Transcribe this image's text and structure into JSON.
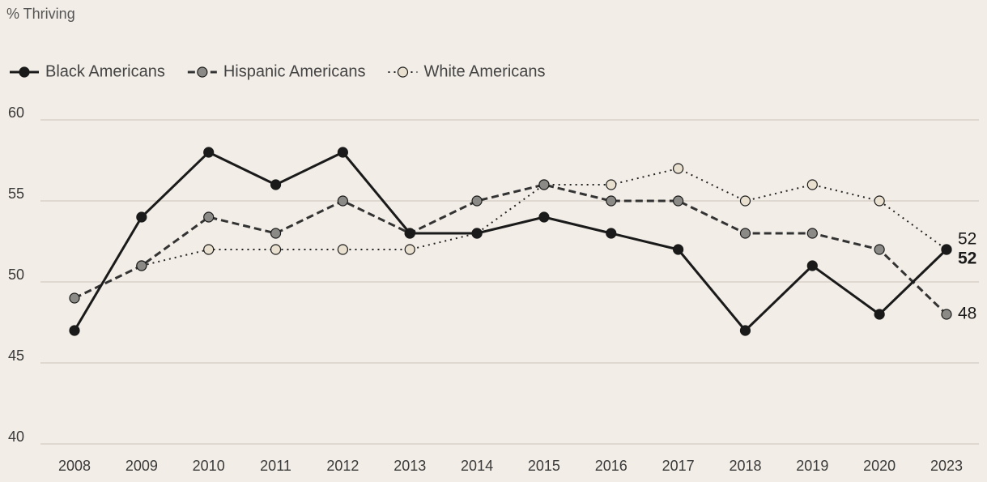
{
  "chart_data": {
    "type": "line",
    "ylabel": "% Thriving",
    "categories": [
      "2008",
      "2009",
      "2010",
      "2011",
      "2012",
      "2013",
      "2014",
      "2015",
      "2016",
      "2017",
      "2018",
      "2019",
      "2020",
      "2023"
    ],
    "series": [
      {
        "name": "Black Americans",
        "color": "#1a1a1a",
        "marker_color": "#1a1a1a",
        "dash": "solid",
        "values": [
          47,
          54,
          58,
          56,
          58,
          53,
          53,
          54,
          53,
          52,
          47,
          51,
          48,
          52
        ]
      },
      {
        "name": "Hispanic Americans",
        "color": "#333333",
        "marker_color": "#8c8a87",
        "dash": "dashed",
        "values": [
          49,
          51,
          54,
          53,
          55,
          53,
          55,
          56,
          55,
          55,
          53,
          53,
          52,
          48
        ]
      },
      {
        "name": "White Americans",
        "color": "#222222",
        "marker_color": "#e9e0d0",
        "dash": "dotted",
        "values": [
          null,
          51,
          52,
          52,
          52,
          52,
          53,
          56,
          56,
          57,
          55,
          56,
          55,
          52
        ]
      }
    ],
    "ylim": [
      40,
      60
    ],
    "yticks": [
      40,
      45,
      50,
      55,
      60
    ],
    "grid": true,
    "legend": "top-left"
  }
}
